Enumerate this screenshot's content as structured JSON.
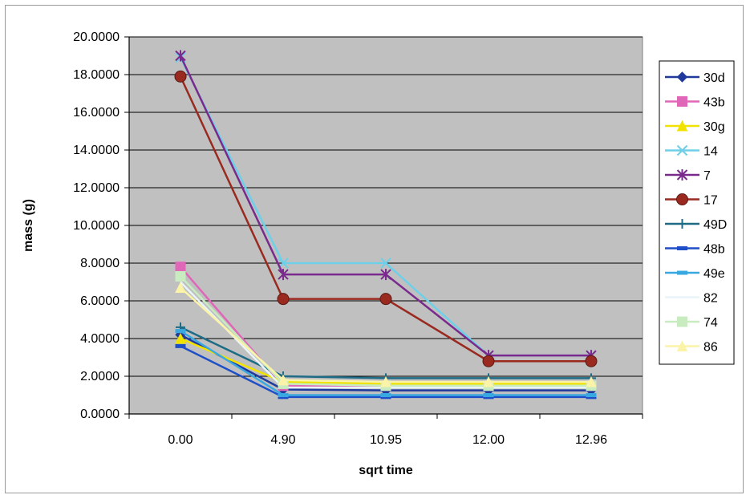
{
  "chart_data": {
    "type": "line",
    "title": "",
    "xlabel": "sqrt time",
    "ylabel": "mass (g)",
    "categories": [
      "0.00",
      "4.90",
      "10.95",
      "12.00",
      "12.96"
    ],
    "ylim": [
      0,
      20
    ],
    "y_ticks": [
      "0.0000",
      "2.0000",
      "4.0000",
      "6.0000",
      "8.0000",
      "10.0000",
      "12.0000",
      "14.0000",
      "16.0000",
      "18.0000",
      "20.0000"
    ],
    "grid": true,
    "legend_position": "right",
    "plot_background": "#c0c0c0",
    "series": [
      {
        "name": "30d",
        "color": "#1f3a9c",
        "marker": "diamond",
        "values": [
          4.2,
          1.3,
          1.25,
          1.25,
          1.25
        ]
      },
      {
        "name": "43b",
        "color": "#e066b8",
        "marker": "square",
        "values": [
          7.8,
          1.5,
          1.5,
          1.5,
          1.5
        ]
      },
      {
        "name": "30g",
        "color": "#f2e200",
        "marker": "triangle",
        "values": [
          4.0,
          1.7,
          1.6,
          1.6,
          1.6
        ]
      },
      {
        "name": "14",
        "color": "#6ed0e8",
        "marker": "x",
        "values": [
          18.9,
          8.0,
          8.0,
          3.1,
          3.1
        ]
      },
      {
        "name": "7",
        "color": "#7a2a8c",
        "marker": "asterisk",
        "values": [
          19.0,
          7.4,
          7.4,
          3.1,
          3.1
        ]
      },
      {
        "name": "17",
        "color": "#9a2a20",
        "marker": "circle",
        "values": [
          17.9,
          6.1,
          6.1,
          2.8,
          2.8
        ]
      },
      {
        "name": "49D",
        "color": "#1e6b86",
        "marker": "plus",
        "values": [
          4.6,
          2.0,
          1.9,
          1.9,
          1.9
        ]
      },
      {
        "name": "48b",
        "color": "#1f4fc8",
        "marker": "dash",
        "values": [
          3.6,
          0.9,
          0.9,
          0.9,
          0.9
        ]
      },
      {
        "name": "49e",
        "color": "#3aa8e0",
        "marker": "dash",
        "values": [
          4.4,
          1.0,
          1.0,
          1.0,
          1.0
        ]
      },
      {
        "name": "82",
        "color": "#e8f4f8",
        "marker": "none",
        "values": [
          7.0,
          1.4,
          1.4,
          1.4,
          1.4
        ]
      },
      {
        "name": "74",
        "color": "#c8ecc0",
        "marker": "square",
        "values": [
          7.3,
          1.6,
          1.5,
          1.5,
          1.5
        ]
      },
      {
        "name": "86",
        "color": "#fbf3a8",
        "marker": "triangle",
        "values": [
          6.7,
          1.8,
          1.7,
          1.7,
          1.7
        ]
      }
    ]
  }
}
